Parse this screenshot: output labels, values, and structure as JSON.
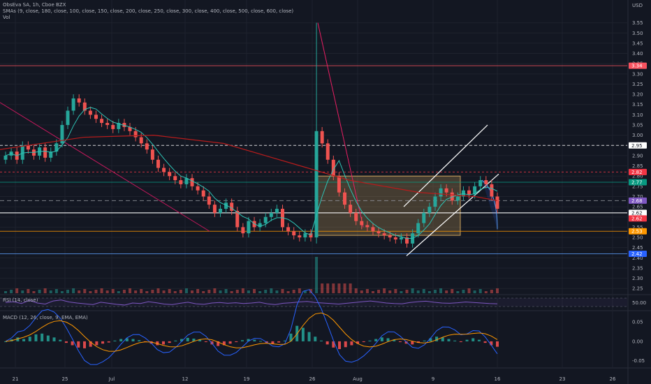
{
  "header": {
    "symbol_line": "ObsEva SA, 1h, Cboe BZX",
    "sma_line": "SMAs (9, close, 180, close, 100, close, 150, close, 200, close, 250, close, 300, close, 400, close, 500, close, 600, close)",
    "vol_label": "Vol",
    "currency": "USD"
  },
  "colors": {
    "background": "#131722",
    "up": "#26a69a",
    "down": "#ef5350",
    "sma_short": "#2ec4b6",
    "sma_long": "#b71c1c",
    "trendline": "#ffffff",
    "zone_fill": "#f6c26b",
    "rsi": "#7e57c2",
    "macd": "#2962ff",
    "signal": "#ff9800"
  },
  "chart_data": {
    "type": "candlestick",
    "x_tick_labels": [
      "21",
      "25",
      "Jul",
      "12",
      "19",
      "26",
      "Aug",
      "9",
      "16",
      "23",
      "26"
    ],
    "y_axis_ticks": [
      "3.55",
      "3.50",
      "3.45",
      "3.40",
      "3.35",
      "3.30",
      "3.25",
      "3.20",
      "3.15",
      "3.10",
      "3.05",
      "3.00",
      "2.95",
      "2.90",
      "2.85",
      "2.80",
      "2.75",
      "2.70",
      "2.65",
      "2.60",
      "2.55",
      "2.50",
      "2.45",
      "2.40",
      "2.35",
      "2.30",
      "2.25"
    ],
    "y_range": [
      2.22,
      3.6
    ],
    "price_close": [
      2.9,
      2.92,
      2.88,
      2.95,
      2.93,
      2.9,
      2.94,
      2.89,
      2.92,
      2.96,
      3.05,
      3.12,
      3.18,
      3.16,
      3.12,
      3.1,
      3.08,
      3.06,
      3.05,
      3.03,
      3.06,
      3.04,
      3.02,
      2.99,
      2.96,
      2.93,
      2.88,
      2.84,
      2.82,
      2.8,
      2.78,
      2.76,
      2.79,
      2.75,
      2.73,
      2.7,
      2.66,
      2.62,
      2.64,
      2.67,
      2.63,
      2.55,
      2.52,
      2.58,
      2.55,
      2.57,
      2.6,
      2.62,
      2.64,
      2.55,
      2.53,
      2.51,
      2.5,
      2.52,
      2.5,
      3.02,
      2.96,
      2.88,
      2.8,
      2.72,
      2.66,
      2.62,
      2.58,
      2.56,
      2.55,
      2.53,
      2.52,
      2.51,
      2.5,
      2.49,
      2.5,
      2.47,
      2.52,
      2.57,
      2.62,
      2.65,
      2.7,
      2.74,
      2.72,
      2.68,
      2.7,
      2.73,
      2.71,
      2.75,
      2.78,
      2.76,
      2.7,
      2.64
    ],
    "horizontal_levels": [
      {
        "label": "3.34",
        "value": 3.34
      },
      {
        "label": "2.95",
        "value": 2.95
      },
      {
        "label": "2.82",
        "value": 2.82
      },
      {
        "label": "2.77",
        "value": 2.77
      },
      {
        "label": "2.68",
        "value": 2.68
      },
      {
        "label": "2.62",
        "value": 2.62
      },
      {
        "label": "2.62",
        "value": 2.62
      },
      {
        "label": "2.53",
        "value": 2.53
      },
      {
        "label": "2.42",
        "value": 2.42
      }
    ],
    "rsi": {
      "label": "RSI (14, close)",
      "axis_value": "50.00",
      "values": [
        52,
        55,
        48,
        60,
        50,
        46,
        58,
        62,
        54,
        50,
        47,
        44,
        53,
        49,
        45,
        42,
        50,
        48,
        55,
        51,
        46,
        44,
        49,
        53,
        47,
        45,
        50,
        52,
        49,
        51,
        48,
        50,
        53,
        47,
        44,
        49,
        51,
        54,
        56,
        52,
        50,
        48,
        46,
        49,
        52,
        55,
        58,
        54,
        50,
        48,
        47,
        52,
        55,
        57,
        53,
        50,
        49,
        51,
        54,
        52,
        50,
        48,
        47
      ]
    },
    "macd": {
      "label": "MACD (12, 26, close, 9, EMA, EMA)",
      "axis_ticks": [
        "0.05",
        "0.00",
        "-0.05"
      ],
      "y_range": [
        -0.065,
        0.07
      ],
      "histogram": [
        0.0,
        0.005,
        0.01,
        0.006,
        0.012,
        0.018,
        0.02,
        0.015,
        0.01,
        0.004,
        -0.004,
        -0.01,
        -0.016,
        -0.018,
        -0.014,
        -0.01,
        -0.006,
        -0.003,
        0.002,
        0.006,
        0.008,
        0.006,
        0.003,
        -0.002,
        -0.006,
        -0.01,
        -0.008,
        -0.004,
        0.002,
        0.006,
        0.009,
        0.007,
        0.004,
        -0.002,
        -0.008,
        -0.012,
        -0.01,
        -0.006,
        -0.002,
        0.003,
        0.006,
        0.004,
        0.001,
        -0.004,
        -0.006,
        -0.003,
        0.002,
        0.02,
        0.04,
        0.035,
        0.024,
        0.012,
        0.002,
        -0.008,
        -0.016,
        -0.02,
        -0.015,
        -0.01,
        -0.006,
        -0.002,
        0.002,
        0.006,
        0.01,
        0.008,
        0.004,
        -0.002,
        -0.006,
        -0.008,
        -0.004,
        0.002,
        0.008,
        0.012,
        0.01,
        0.006,
        0.002,
        -0.002,
        0.004,
        0.008,
        0.004,
        -0.004,
        -0.01,
        -0.014
      ]
    }
  }
}
